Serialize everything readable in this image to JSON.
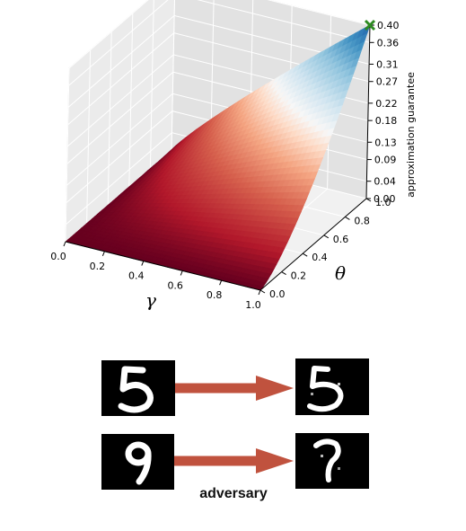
{
  "chart_data": {
    "type": "surface",
    "title": "",
    "xlabel": "γ",
    "ylabel": "θ",
    "zlabel": "approximation guarantee",
    "x_ticks": [
      "0.0",
      "0.2",
      "0.4",
      "0.6",
      "0.8",
      "1.0"
    ],
    "y_ticks": [
      "0.0",
      "0.2",
      "0.4",
      "0.6",
      "0.8",
      "1.0"
    ],
    "z_ticks": [
      "0.00",
      "0.04",
      "0.09",
      "0.13",
      "0.18",
      "0.22",
      "0.27",
      "0.31",
      "0.36",
      "0.40"
    ],
    "xlim": [
      0,
      1
    ],
    "ylim": [
      0,
      1
    ],
    "zlim": [
      0,
      0.4
    ],
    "colormap": "RdBu",
    "grid": true,
    "corner_values": [
      {
        "gamma": 0,
        "theta": 0,
        "value": 0.0
      },
      {
        "gamma": 1,
        "theta": 0,
        "value": 0.0
      },
      {
        "gamma": 0,
        "theta": 1,
        "value": 0.0
      },
      {
        "gamma": 1,
        "theta": 1,
        "value": 0.4
      }
    ],
    "max_marker": {
      "gamma": 1,
      "theta": 1,
      "value": 0.4,
      "symbol": "x",
      "color": "#2e8b22"
    }
  },
  "figure": {
    "caption": "adversary",
    "arrow_color": "#c0523e",
    "rows": [
      {
        "original_digit": "5",
        "adversarial_digit": "5"
      },
      {
        "original_digit": "9",
        "adversarial_digit": "7"
      }
    ]
  }
}
